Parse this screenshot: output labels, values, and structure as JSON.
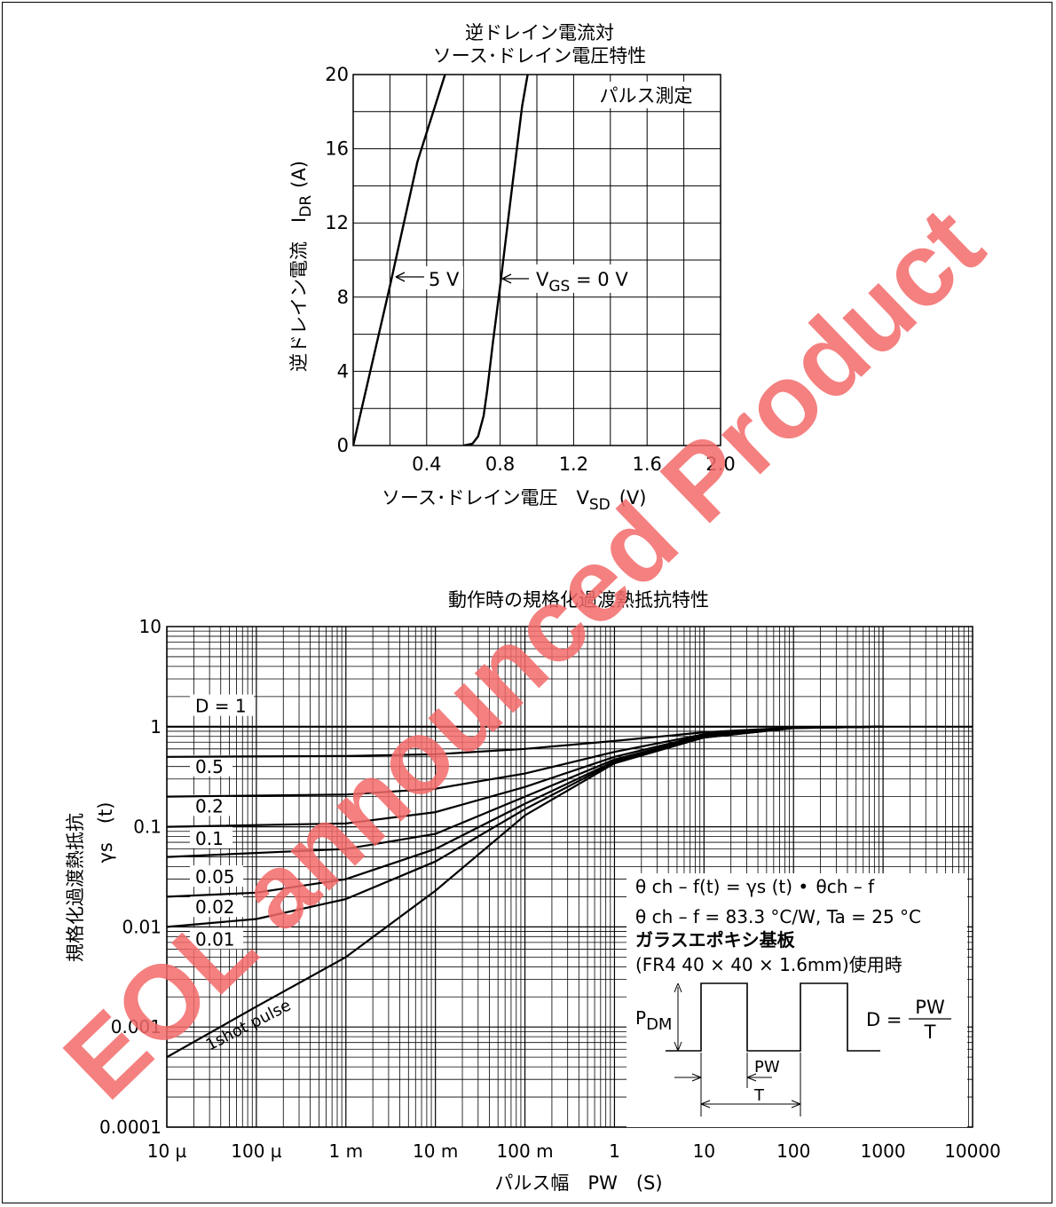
{
  "watermark": {
    "text": "EOL announced Product",
    "color": "#f46a6a"
  },
  "chart_data": [
    {
      "type": "line",
      "title": [
        "逆ドレイン電流対",
        "ソース･ドレイン電圧特性"
      ],
      "ylabel": "逆ドレイン電流　I",
      "ylabel_sub": "DR",
      "ylabel_unit": "(A)",
      "xlabel": "ソース･ドレイン電圧　V",
      "xlabel_sub": "SD",
      "xlabel_unit": "(V)",
      "xlim": [
        0,
        2.0
      ],
      "ylim": [
        0,
        20
      ],
      "x_ticks": [
        "0.4",
        "0.8",
        "1.2",
        "1.6",
        "2.0"
      ],
      "y_ticks": [
        "0",
        "4",
        "8",
        "12",
        "16",
        "20"
      ],
      "grid": true,
      "note": "パルス測定",
      "series": [
        {
          "name": "5 V",
          "color": "#000000",
          "points": [
            [
              0,
              0
            ],
            [
              0.2,
              8.6
            ],
            [
              0.35,
              15.3
            ],
            [
              0.5,
              20
            ]
          ]
        },
        {
          "name": "VGS = 0 V",
          "color": "#000000",
          "points": [
            [
              0.6,
              0
            ],
            [
              0.65,
              0.1
            ],
            [
              0.68,
              0.5
            ],
            [
              0.71,
              1.6
            ],
            [
              0.73,
              3.0
            ],
            [
              0.76,
              5.5
            ],
            [
              0.8,
              8.6
            ],
            [
              0.86,
              13.5
            ],
            [
              0.92,
              18.3
            ],
            [
              0.95,
              20
            ]
          ]
        }
      ],
      "labels": [
        {
          "text": "5 V"
        },
        {
          "text": "V",
          "sub": "GS",
          "rest": " = 0 V"
        }
      ]
    },
    {
      "type": "line",
      "title": "動作時の規格化過渡熱抵抗特性",
      "ylabel": "規格化過渡熱抵抗",
      "ylabel2": "γs　(t)",
      "xlabel": "パルス幅　PW　(S)",
      "x_scale": "log",
      "y_scale": "log",
      "xlim": [
        1e-05,
        10000
      ],
      "ylim": [
        0.0001,
        10
      ],
      "x_ticks": [
        "10 µ",
        "100 µ",
        "1 m",
        "10 m",
        "100 m",
        "1",
        "10",
        "100",
        "1000",
        "10000"
      ],
      "y_ticks": [
        "10",
        "1",
        "0.1",
        "0.01",
        "0.001",
        "0.0001"
      ],
      "grid": true,
      "series": [
        {
          "name": "D = 1",
          "points": [
            [
              1e-05,
              1.0
            ],
            [
              10000,
              1.0
            ]
          ]
        },
        {
          "name": "0.5",
          "points": [
            [
              1e-05,
              0.5
            ],
            [
              0.001,
              0.51
            ],
            [
              0.01,
              0.53
            ],
            [
              0.1,
              0.6
            ],
            [
              1,
              0.72
            ],
            [
              10,
              0.88
            ],
            [
              100,
              0.98
            ],
            [
              1000,
              1.0
            ]
          ]
        },
        {
          "name": "0.2",
          "points": [
            [
              1e-05,
              0.2
            ],
            [
              0.001,
              0.21
            ],
            [
              0.01,
              0.24
            ],
            [
              0.1,
              0.34
            ],
            [
              1,
              0.56
            ],
            [
              10,
              0.84
            ],
            [
              100,
              0.98
            ],
            [
              1000,
              1.0
            ]
          ]
        },
        {
          "name": "0.1",
          "points": [
            [
              1e-05,
              0.1
            ],
            [
              0.001,
              0.108
            ],
            [
              0.01,
              0.14
            ],
            [
              0.1,
              0.25
            ],
            [
              1,
              0.5
            ],
            [
              10,
              0.82
            ],
            [
              100,
              0.98
            ],
            [
              1000,
              1.0
            ]
          ]
        },
        {
          "name": "0.05",
          "points": [
            [
              1e-05,
              0.05
            ],
            [
              0.001,
              0.06
            ],
            [
              0.01,
              0.085
            ],
            [
              0.1,
              0.2
            ],
            [
              1,
              0.47
            ],
            [
              10,
              0.8
            ],
            [
              100,
              0.98
            ],
            [
              1000,
              1.0
            ]
          ]
        },
        {
          "name": "0.02",
          "points": [
            [
              1e-05,
              0.02
            ],
            [
              0.0001,
              0.022
            ],
            [
              0.001,
              0.03
            ],
            [
              0.01,
              0.06
            ],
            [
              0.1,
              0.17
            ],
            [
              1,
              0.45
            ],
            [
              10,
              0.79
            ],
            [
              100,
              0.97
            ],
            [
              1000,
              1.0
            ]
          ]
        },
        {
          "name": "0.01",
          "points": [
            [
              1e-05,
              0.01
            ],
            [
              0.0001,
              0.012
            ],
            [
              0.001,
              0.019
            ],
            [
              0.01,
              0.045
            ],
            [
              0.1,
              0.15
            ],
            [
              1,
              0.44
            ],
            [
              10,
              0.78
            ],
            [
              100,
              0.97
            ],
            [
              1000,
              1.0
            ]
          ]
        },
        {
          "name": "1shot pulse",
          "points": [
            [
              1e-05,
              0.0005
            ],
            [
              0.0001,
              0.0016
            ],
            [
              0.001,
              0.005
            ],
            [
              0.01,
              0.023
            ],
            [
              0.1,
              0.13
            ],
            [
              1,
              0.43
            ],
            [
              10,
              0.78
            ],
            [
              100,
              0.97
            ],
            [
              1000,
              1.0
            ]
          ]
        }
      ],
      "legend_box": {
        "lines": [
          {
            "parts": [
              "θ",
              " ch – f(t) = γs (t) • ",
              "θ",
              "ch – f"
            ]
          },
          {
            "parts": [
              "θ",
              " ch – f = 83.3 °C/W, Ta = 25 °C"
            ]
          },
          {
            "parts": [
              "ガラスエポキシ基板"
            ]
          },
          {
            "parts": [
              "(FR4 40 × 40 × 1.6mm)使用時"
            ]
          }
        ],
        "pdm_label": "P",
        "pdm_sub": "DM",
        "d_eq": "D =",
        "d_num": "PW",
        "d_den": "T",
        "pw_label": "PW",
        "t_label": "T"
      }
    }
  ]
}
